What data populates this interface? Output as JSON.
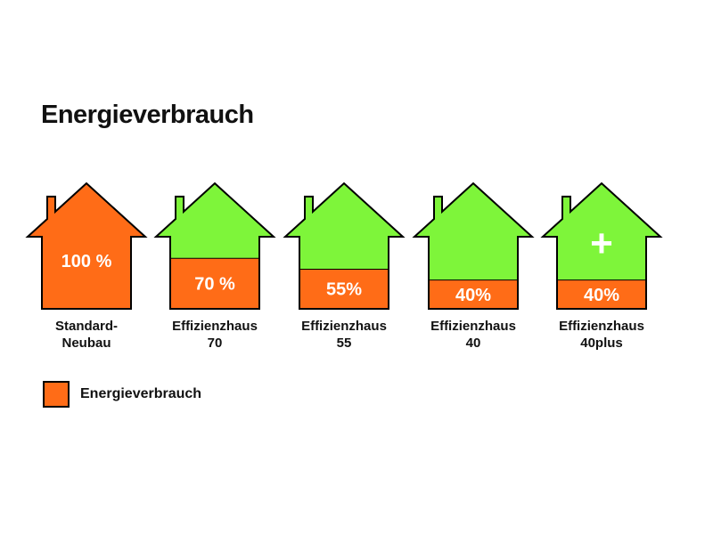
{
  "chart_data": {
    "type": "bar",
    "title": "Energieverbrauch",
    "xlabel": "",
    "ylabel": "",
    "ylim": [
      0,
      100
    ],
    "categories": [
      [
        "Standard-",
        "Neubau"
      ],
      [
        "Effizienzhaus",
        "70"
      ],
      [
        "Effizienzhaus",
        "55"
      ],
      [
        "Effizienzhaus",
        "40"
      ],
      [
        "Effizienzhaus",
        "40plus"
      ]
    ],
    "values": [
      100,
      70,
      55,
      40,
      40
    ],
    "value_labels": [
      "100 %",
      "70 %",
      "55%",
      "40%",
      "40%"
    ],
    "extra_symbols": [
      "",
      "",
      "",
      "",
      "+"
    ],
    "legend": {
      "position": "bottom-left",
      "entries": [
        "Energieverbrauch"
      ]
    },
    "colors": {
      "energy": "#ff6c17",
      "remainder": "#7ef53a",
      "outline": "#000000"
    },
    "grid": false
  }
}
